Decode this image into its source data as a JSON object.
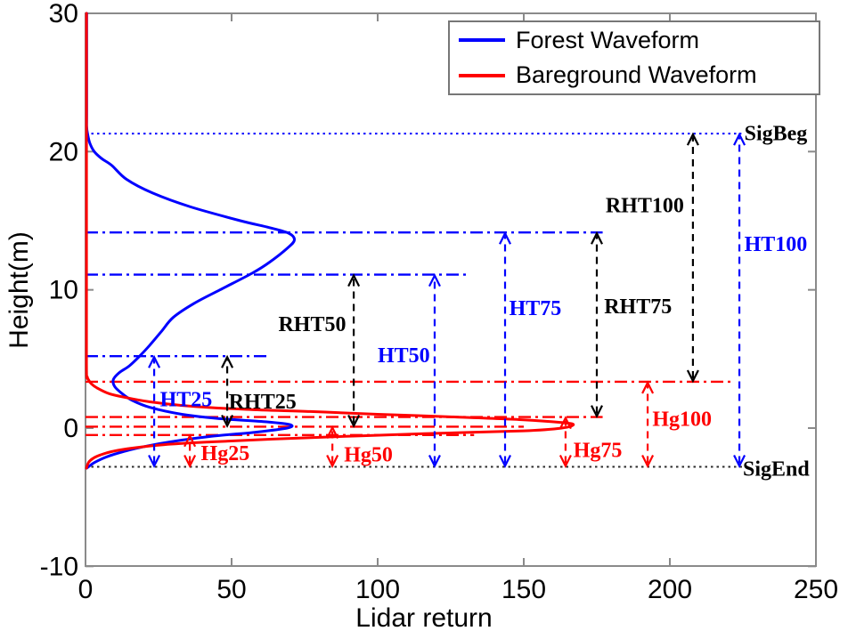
{
  "chart_data": {
    "type": "line",
    "title": "",
    "xlabel": "Lidar return",
    "ylabel": "Height(m)",
    "xlim": [
      0,
      250
    ],
    "ylim": [
      -10,
      30
    ],
    "xticks": [
      0,
      50,
      100,
      150,
      200,
      250
    ],
    "yticks": [
      -10,
      0,
      10,
      20,
      30
    ],
    "grid": false,
    "axis_color": "#8a8a8a",
    "legend": {
      "position": "top-right",
      "entries": [
        {
          "name": "forest",
          "label": "Forest Waveform",
          "color": "#0000ff"
        },
        {
          "name": "bareground",
          "label": "Bareground Waveform",
          "color": "#ff0000"
        }
      ]
    },
    "series": [
      {
        "name": "forest-waveform",
        "label": "Forest Waveform",
        "color": "#0000ff",
        "points": [
          [
            0.4,
            30
          ],
          [
            0.4,
            23
          ],
          [
            0.4,
            21.8
          ],
          [
            0.8,
            21.2
          ],
          [
            1.5,
            20.6
          ],
          [
            3,
            20
          ],
          [
            5.5,
            19.5
          ],
          [
            9,
            19
          ],
          [
            14,
            18
          ],
          [
            23,
            17
          ],
          [
            36,
            16
          ],
          [
            53,
            15
          ],
          [
            63,
            14.5
          ],
          [
            69.5,
            14.1
          ],
          [
            71.5,
            13.6
          ],
          [
            69,
            13
          ],
          [
            63,
            12
          ],
          [
            57,
            11.2
          ],
          [
            46,
            10
          ],
          [
            37,
            9
          ],
          [
            30,
            8
          ],
          [
            26,
            7
          ],
          [
            22,
            6
          ],
          [
            18.5,
            5.2
          ],
          [
            15,
            4.5
          ],
          [
            11.5,
            4
          ],
          [
            9.5,
            3.5
          ],
          [
            10,
            3
          ],
          [
            12.5,
            2.5
          ],
          [
            16,
            2
          ],
          [
            22,
            1.5
          ],
          [
            33,
            1
          ],
          [
            45,
            0.7
          ],
          [
            62,
            0.45
          ],
          [
            70,
            0.25
          ],
          [
            69,
            0
          ],
          [
            58,
            -0.3
          ],
          [
            43,
            -0.6
          ],
          [
            29,
            -1
          ],
          [
            21,
            -1.3
          ],
          [
            13,
            -1.7
          ],
          [
            7,
            -2.1
          ],
          [
            3,
            -2.5
          ],
          [
            1,
            -2.8
          ],
          [
            0.4,
            -2.9
          ]
        ]
      },
      {
        "name": "bareground-waveform",
        "label": "Bareground Waveform",
        "color": "#ff0000",
        "points": [
          [
            0.35,
            30
          ],
          [
            0.35,
            10
          ],
          [
            0.35,
            4.2
          ],
          [
            0.6,
            3.7
          ],
          [
            1,
            3.5
          ],
          [
            2,
            3.2
          ],
          [
            4,
            2.9
          ],
          [
            8,
            2.5
          ],
          [
            14,
            2.2
          ],
          [
            22,
            1.9
          ],
          [
            35,
            1.6
          ],
          [
            55,
            1.35
          ],
          [
            77,
            1.2
          ],
          [
            100,
            1
          ],
          [
            127,
            0.8
          ],
          [
            150,
            0.6
          ],
          [
            163,
            0.4
          ],
          [
            167,
            0.25
          ],
          [
            163,
            0
          ],
          [
            150,
            -0.2
          ],
          [
            116,
            -0.4
          ],
          [
            89,
            -0.6
          ],
          [
            64,
            -0.8
          ],
          [
            43,
            -1
          ],
          [
            27,
            -1.2
          ],
          [
            16,
            -1.45
          ],
          [
            9,
            -1.7
          ],
          [
            5,
            -1.95
          ],
          [
            2.5,
            -2.2
          ],
          [
            1,
            -2.5
          ],
          [
            0.35,
            -2.9
          ]
        ]
      }
    ],
    "reference_lines": [
      {
        "name": "sigbeg-line",
        "color": "#0000ff",
        "style": "dotted",
        "y": 21.3,
        "x0": 0,
        "x1": 224.5
      },
      {
        "name": "ht75-level-line",
        "color": "#0000ff",
        "style": "dashdot",
        "y": 14.15,
        "x0": 0,
        "x1": 177
      },
      {
        "name": "ht50-level-line",
        "color": "#0000ff",
        "style": "dashdot",
        "y": 11.1,
        "x0": 0,
        "x1": 130.5
      },
      {
        "name": "ht25-level-line",
        "color": "#0000ff",
        "style": "dashdot",
        "y": 5.2,
        "x0": 0,
        "x1": 63
      },
      {
        "name": "hg100-level-line",
        "color": "#ff0000",
        "style": "dashdot",
        "y": 3.35,
        "x0": 0,
        "x1": 221
      },
      {
        "name": "hg75-level-line",
        "color": "#ff0000",
        "style": "dashdot",
        "y": 0.8,
        "x0": 0,
        "x1": 177
      },
      {
        "name": "hg50-level-line",
        "color": "#ff0000",
        "style": "dashdot",
        "y": 0.1,
        "x0": 0,
        "x1": 150
      },
      {
        "name": "hg25-level-line",
        "color": "#ff0000",
        "style": "dashdot",
        "y": -0.5,
        "x0": 0,
        "x1": 133
      },
      {
        "name": "sigend-line",
        "color": "#2b2b2b",
        "style": "dotted",
        "y": -2.8,
        "x0": 0,
        "x1": 227.5
      }
    ],
    "arrows": [
      {
        "name": "ht25-arrow",
        "color": "#0000ff",
        "x": 23.5,
        "y0": -2.8,
        "y1": 5.2
      },
      {
        "name": "ht50-arrow",
        "color": "#0000ff",
        "x": 119.5,
        "y0": -2.8,
        "y1": 11.1
      },
      {
        "name": "ht75-arrow",
        "color": "#0000ff",
        "x": 143.6,
        "y0": -2.8,
        "y1": 14.15
      },
      {
        "name": "ht100-arrow",
        "color": "#0000ff",
        "x": 223.8,
        "y0": -2.8,
        "y1": 21.3
      },
      {
        "name": "rht25-arrow",
        "color": "#000000",
        "x": 48.5,
        "y0": 0.1,
        "y1": 5.2
      },
      {
        "name": "rht50-arrow",
        "color": "#000000",
        "x": 91.8,
        "y0": 0.1,
        "y1": 11.1
      },
      {
        "name": "rht75-arrow",
        "color": "#000000",
        "x": 175,
        "y0": 0.8,
        "y1": 14.15
      },
      {
        "name": "rht100-arrow",
        "color": "#000000",
        "x": 207.9,
        "y0": 3.35,
        "y1": 21.3
      },
      {
        "name": "hg25-arrow",
        "color": "#ff0000",
        "x": 35.7,
        "y0": -2.8,
        "y1": -0.5
      },
      {
        "name": "hg50-arrow",
        "color": "#ff0000",
        "x": 84.5,
        "y0": -2.8,
        "y1": 0.1
      },
      {
        "name": "hg75-arrow",
        "color": "#ff0000",
        "x": 164.3,
        "y0": -2.8,
        "y1": 0.8
      },
      {
        "name": "hg100-arrow",
        "color": "#ff0000",
        "x": 192.4,
        "y0": -2.8,
        "y1": 3.35
      }
    ],
    "annotations": [
      {
        "name": "ht25-label",
        "text": "HT25",
        "color": "#0000ff",
        "x": 25.5,
        "y": 2.15
      },
      {
        "name": "rht25-label",
        "text": "RHT25",
        "color": "#000000",
        "x": 49,
        "y": 2.0
      },
      {
        "name": "hg25-label",
        "text": "Hg25",
        "color": "#ff0000",
        "x": 39.5,
        "y": -1.75
      },
      {
        "name": "hg50-label",
        "text": "Hg50",
        "color": "#ff0000",
        "x": 88.5,
        "y": -1.85
      },
      {
        "name": "rht50-label",
        "text": "RHT50",
        "color": "#000000",
        "x": 66,
        "y": 7.6
      },
      {
        "name": "ht50-label",
        "text": "HT50",
        "color": "#0000ff",
        "x": 100,
        "y": 5.35
      },
      {
        "name": "ht75-label",
        "text": "HT75",
        "color": "#0000ff",
        "x": 145,
        "y": 8.75
      },
      {
        "name": "rht75-label",
        "text": "RHT75",
        "color": "#000000",
        "x": 177.5,
        "y": 8.9
      },
      {
        "name": "hg75-label",
        "text": "Hg75",
        "color": "#ff0000",
        "x": 167,
        "y": -1.5
      },
      {
        "name": "hg100-label",
        "text": "Hg100",
        "color": "#ff0000",
        "x": 194,
        "y": 0.75
      },
      {
        "name": "rht100-label",
        "text": "RHT100",
        "color": "#000000",
        "x": 178,
        "y": 16.2
      },
      {
        "name": "ht100-label",
        "text": "HT100",
        "color": "#0000ff",
        "x": 225.5,
        "y": 13.4
      },
      {
        "name": "sigbeg-label",
        "text": "SigBeg",
        "color": "#000000",
        "x": 225.5,
        "y": 21.4
      },
      {
        "name": "sigend-label",
        "text": "SigEnd",
        "color": "#000000",
        "x": 225,
        "y": -2.85
      }
    ]
  }
}
